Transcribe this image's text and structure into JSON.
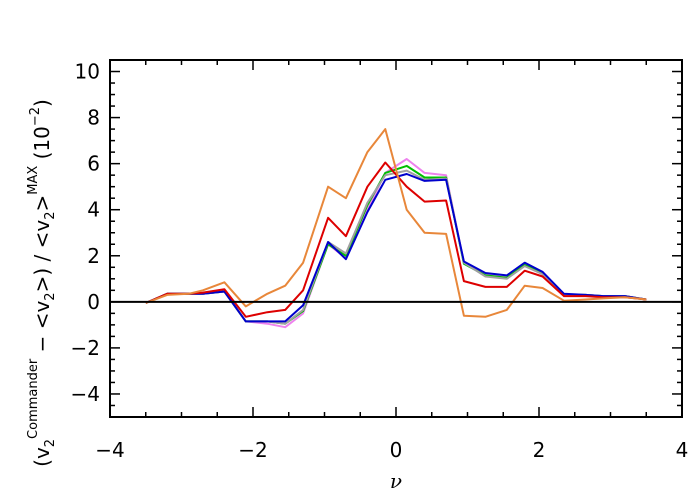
{
  "chart_data": {
    "type": "line",
    "xlabel": "ν",
    "ylabel": {
      "part1": "(v",
      "sub1": "2",
      "sup1": "Commander",
      "part2": " − <v",
      "sub2": "2",
      "part3": ">) / <v",
      "sub3": "2",
      "part4": ">",
      "sup2": "MAX",
      "part5": " (10",
      "sup3": "−2",
      "part6": ")"
    },
    "xlim": [
      -4,
      4
    ],
    "ylim": [
      -5,
      10.5
    ],
    "xticks": [
      -4,
      -2,
      0,
      2,
      4
    ],
    "yticks": [
      -4,
      -2,
      0,
      2,
      4,
      6,
      8,
      10
    ],
    "zero_line": true,
    "grid": false,
    "x": [
      -3.5,
      -3.2,
      -2.9,
      -2.7,
      -2.4,
      -2.1,
      -1.8,
      -1.55,
      -1.3,
      -0.95,
      -0.7,
      -0.4,
      -0.15,
      0.15,
      0.4,
      0.7,
      0.95,
      1.25,
      1.55,
      1.8,
      2.05,
      2.35,
      2.65,
      2.9,
      3.2,
      3.5
    ],
    "series": [
      {
        "color": "#ee82ee",
        "values": [
          -0.05,
          0.35,
          0.35,
          0.35,
          0.45,
          -0.85,
          -0.95,
          -1.1,
          -0.5,
          2.5,
          1.9,
          4.0,
          5.6,
          6.2,
          5.6,
          5.5,
          1.7,
          1.2,
          1.1,
          1.65,
          1.3,
          0.3,
          0.3,
          0.25,
          0.25,
          0.1
        ]
      },
      {
        "color": "#00c000",
        "values": [
          -0.05,
          0.35,
          0.35,
          0.35,
          0.45,
          -0.85,
          -0.85,
          -0.95,
          -0.4,
          2.5,
          2.0,
          4.2,
          5.6,
          5.9,
          5.4,
          5.4,
          1.65,
          1.15,
          1.05,
          1.6,
          1.25,
          0.3,
          0.3,
          0.25,
          0.25,
          0.1
        ]
      },
      {
        "color": "#a0a0a0",
        "values": [
          -0.05,
          0.35,
          0.35,
          0.35,
          0.45,
          -0.85,
          -0.85,
          -0.95,
          -0.35,
          2.6,
          2.1,
          4.3,
          5.5,
          5.7,
          5.3,
          5.35,
          1.7,
          1.1,
          1.0,
          1.55,
          1.2,
          0.3,
          0.3,
          0.25,
          0.25,
          0.1
        ]
      },
      {
        "color": "#0000cc",
        "values": [
          -0.05,
          0.35,
          0.35,
          0.35,
          0.45,
          -0.85,
          -0.85,
          -0.85,
          -0.15,
          2.6,
          1.85,
          3.9,
          5.3,
          5.55,
          5.25,
          5.3,
          1.75,
          1.25,
          1.15,
          1.7,
          1.3,
          0.35,
          0.3,
          0.25,
          0.25,
          0.1
        ]
      },
      {
        "color": "#dd0000",
        "values": [
          -0.05,
          0.35,
          0.35,
          0.4,
          0.55,
          -0.65,
          -0.45,
          -0.35,
          0.5,
          3.65,
          2.85,
          5.0,
          6.05,
          5.0,
          4.35,
          4.4,
          0.9,
          0.65,
          0.65,
          1.35,
          1.1,
          0.25,
          0.25,
          0.2,
          0.2,
          0.1
        ]
      },
      {
        "color": "#e8873a",
        "values": [
          -0.05,
          0.3,
          0.35,
          0.5,
          0.85,
          -0.2,
          0.35,
          0.7,
          1.7,
          5.0,
          4.5,
          6.5,
          7.5,
          4.0,
          3.0,
          2.95,
          -0.6,
          -0.65,
          -0.35,
          0.7,
          0.6,
          0.05,
          0.1,
          0.15,
          0.2,
          0.1
        ]
      }
    ]
  }
}
